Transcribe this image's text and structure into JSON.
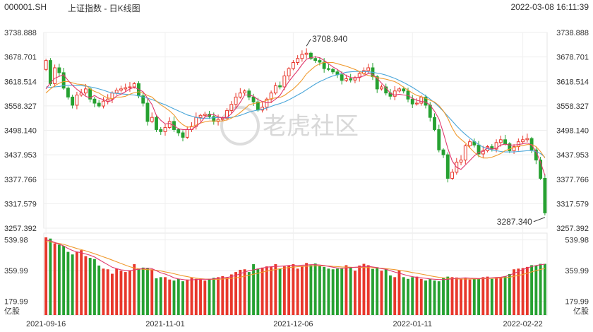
{
  "header": {
    "symbol": "000001.SH",
    "name": "上证指数 - 日K线图",
    "datetime": "2022-03-08 16:11:39"
  },
  "watermark": "老虎社区",
  "colors": {
    "up": "#e8372b",
    "down": "#26a131",
    "ma5": "#e0396e",
    "ma10": "#f09a2e",
    "ma20": "#4aa6d9"
  },
  "chart_data": [
    {
      "type": "candlestick",
      "title": "",
      "ylim": [
        3257.392,
        3738.888
      ],
      "y_ticks": [
        "3738.888",
        "3678.701",
        "3618.514",
        "3558.327",
        "3498.140",
        "3437.953",
        "3377.766",
        "3317.579",
        "3257.392"
      ],
      "x_ticks": [
        "2021-09-16",
        "2021-11-01",
        "2021-12-06",
        "2022-01-11",
        "2022-02-22"
      ],
      "annotations": {
        "high": "3708.940",
        "low": "3287.340"
      },
      "close": [
        3670,
        3613,
        3652,
        3640,
        3602,
        3580,
        3560,
        3585,
        3590,
        3600,
        3575,
        3565,
        3558,
        3570,
        3575,
        3590,
        3597,
        3600,
        3603,
        3605,
        3613,
        3583,
        3565,
        3520,
        3530,
        3500,
        3495,
        3505,
        3520,
        3500,
        3492,
        3481,
        3500,
        3508,
        3530,
        3535,
        3538,
        3532,
        3520,
        3525,
        3528,
        3547,
        3562,
        3580,
        3590,
        3595,
        3580,
        3568,
        3548,
        3555,
        3575,
        3590,
        3608,
        3605,
        3632,
        3650,
        3665,
        3675,
        3685,
        3688,
        3675,
        3670,
        3666,
        3650,
        3648,
        3642,
        3635,
        3621,
        3625,
        3622,
        3628,
        3638,
        3645,
        3652,
        3630,
        3600,
        3605,
        3590,
        3582,
        3595,
        3600,
        3595,
        3575,
        3563,
        3565,
        3580,
        3560,
        3530,
        3500,
        3450,
        3438,
        3380,
        3395,
        3420,
        3425,
        3460,
        3470,
        3462,
        3440,
        3448,
        3458,
        3452,
        3468,
        3475,
        3465,
        3448,
        3458,
        3470,
        3475,
        3478,
        3450,
        3425,
        3380,
        3295
      ],
      "ma5": [
        3600,
        3615,
        3626,
        3631,
        3635,
        3621,
        3609,
        3599,
        3591,
        3582,
        3578,
        3584,
        3577,
        3574,
        3568,
        3572,
        3583,
        3587,
        3593,
        3600,
        3604,
        3599,
        3593,
        3577,
        3562,
        3535,
        3523,
        3514,
        3515,
        3510,
        3502,
        3500,
        3500,
        3500,
        3508,
        3517,
        3531,
        3536,
        3537,
        3531,
        3529,
        3530,
        3539,
        3552,
        3567,
        3585,
        3585,
        3582,
        3574,
        3569,
        3566,
        3567,
        3575,
        3584,
        3602,
        3618,
        3632,
        3645,
        3660,
        3673,
        3677,
        3679,
        3677,
        3670,
        3662,
        3654,
        3648,
        3640,
        3633,
        3628,
        3627,
        3629,
        3632,
        3638,
        3636,
        3626,
        3614,
        3603,
        3589,
        3585,
        3587,
        3585,
        3584,
        3577,
        3572,
        3569,
        3568,
        3560,
        3545,
        3526,
        3492,
        3454,
        3423,
        3407,
        3402,
        3413,
        3424,
        3435,
        3444,
        3446,
        3456,
        3452,
        3454,
        3462,
        3464,
        3462,
        3462,
        3463,
        3465,
        3467,
        3462,
        3446,
        3420,
        3387
      ],
      "ma10": [
        3590,
        3600,
        3608,
        3614,
        3618,
        3618,
        3615,
        3612,
        3611,
        3609,
        3600,
        3594,
        3590,
        3583,
        3578,
        3576,
        3580,
        3580,
        3582,
        3587,
        3591,
        3593,
        3590,
        3584,
        3580,
        3570,
        3561,
        3554,
        3546,
        3536,
        3521,
        3512,
        3506,
        3507,
        3511,
        3516,
        3519,
        3521,
        3521,
        3521,
        3521,
        3524,
        3528,
        3534,
        3542,
        3551,
        3561,
        3564,
        3566,
        3568,
        3572,
        3576,
        3578,
        3579,
        3584,
        3592,
        3600,
        3610,
        3622,
        3637,
        3647,
        3656,
        3662,
        3665,
        3665,
        3665,
        3662,
        3659,
        3656,
        3652,
        3648,
        3643,
        3637,
        3633,
        3631,
        3628,
        3626,
        3624,
        3621,
        3618,
        3612,
        3604,
        3597,
        3590,
        3584,
        3581,
        3577,
        3572,
        3568,
        3559,
        3546,
        3528,
        3504,
        3486,
        3476,
        3467,
        3455,
        3444,
        3435,
        3430,
        3430,
        3432,
        3436,
        3441,
        3448,
        3452,
        3456,
        3459,
        3461,
        3463,
        3463,
        3458,
        3446,
        3430
      ],
      "ma20": [
        3605,
        3604,
        3605,
        3606,
        3608,
        3609,
        3609,
        3608,
        3608,
        3607,
        3605,
        3603,
        3600,
        3597,
        3593,
        3590,
        3589,
        3588,
        3587,
        3586,
        3585,
        3583,
        3580,
        3577,
        3574,
        3570,
        3565,
        3561,
        3556,
        3551,
        3546,
        3541,
        3536,
        3533,
        3530,
        3528,
        3528,
        3528,
        3529,
        3530,
        3529,
        3529,
        3530,
        3532,
        3535,
        3539,
        3543,
        3546,
        3548,
        3550,
        3553,
        3557,
        3561,
        3564,
        3568,
        3573,
        3579,
        3585,
        3591,
        3598,
        3605,
        3612,
        3618,
        3623,
        3628,
        3632,
        3635,
        3638,
        3641,
        3642,
        3643,
        3643,
        3643,
        3642,
        3641,
        3639,
        3637,
        3634,
        3630,
        3626,
        3621,
        3616,
        3610,
        3604,
        3597,
        3590,
        3583,
        3575,
        3566,
        3556,
        3545,
        3533,
        3521,
        3509,
        3498,
        3488,
        3479,
        3471,
        3463,
        3457,
        3453,
        3450,
        3448,
        3446,
        3445,
        3445,
        3445,
        3446,
        3447,
        3448,
        3448,
        3446,
        3441,
        3432
      ]
    },
    {
      "type": "bar",
      "title": "",
      "ylabel": "亿股",
      "ylim": [
        100,
        580
      ],
      "y_ticks": [
        "539.98",
        "359.99",
        "179.99"
      ],
      "volume": [
        555,
        548,
        520,
        512,
        505,
        470,
        455,
        470,
        480,
        445,
        435,
        428,
        390,
        372,
        368,
        342,
        372,
        360,
        352,
        362,
        398,
        372,
        378,
        375,
        368,
        315,
        322,
        322,
        308,
        302,
        312,
        298,
        308,
        318,
        312,
        308,
        302,
        312,
        318,
        322,
        328,
        322,
        338,
        352,
        365,
        368,
        352,
        398,
        372,
        378,
        385,
        382,
        398,
        372,
        385,
        392,
        398,
        372,
        385,
        405,
        392,
        402,
        388,
        382,
        372,
        368,
        372,
        372,
        392,
        380,
        360,
        390,
        400,
        392,
        370,
        380,
        360,
        372,
        332,
        322,
        362,
        322,
        312,
        322,
        325,
        312,
        302,
        312,
        302,
        298,
        316,
        325,
        322,
        320,
        312,
        318,
        308,
        312,
        315,
        322,
        325,
        312,
        322,
        322,
        328,
        340,
        368,
        372,
        375,
        382,
        392,
        390,
        400,
        400
      ],
      "vol_ma5": [
        540,
        535,
        525,
        515,
        505,
        490,
        478,
        470,
        465,
        458,
        450,
        440,
        425,
        410,
        395,
        380,
        372,
        365,
        362,
        360,
        365,
        368,
        372,
        375,
        372,
        360,
        348,
        340,
        330,
        318,
        312,
        308,
        305,
        306,
        308,
        310,
        310,
        310,
        312,
        315,
        318,
        320,
        325,
        332,
        342,
        352,
        360,
        365,
        370,
        375,
        380,
        383,
        385,
        386,
        388,
        390,
        392,
        390,
        392,
        393,
        395,
        395,
        393,
        390,
        385,
        380,
        376,
        374,
        376,
        378,
        380,
        382,
        384,
        385,
        382,
        378,
        372,
        368,
        360,
        352,
        345,
        338,
        330,
        325,
        320,
        318,
        315,
        312,
        310,
        308,
        308,
        310,
        312,
        315,
        316,
        318,
        316,
        315,
        314,
        315,
        316,
        318,
        320,
        322,
        326,
        334,
        344,
        355,
        366,
        376,
        384,
        390,
        395,
        398
      ],
      "vol_ma10": [
        530,
        528,
        524,
        519,
        514,
        506,
        498,
        490,
        483,
        476,
        468,
        459,
        450,
        441,
        432,
        422,
        412,
        402,
        392,
        383,
        376,
        371,
        368,
        366,
        365,
        362,
        358,
        353,
        348,
        342,
        336,
        330,
        325,
        320,
        316,
        313,
        311,
        310,
        309,
        310,
        311,
        313,
        315,
        318,
        322,
        327,
        333,
        339,
        345,
        351,
        357,
        362,
        367,
        371,
        375,
        378,
        381,
        383,
        385,
        386,
        387,
        388,
        388,
        388,
        387,
        385,
        384,
        382,
        381,
        380,
        379,
        379,
        378,
        378,
        377,
        376,
        374,
        372,
        369,
        366,
        362,
        358,
        354,
        349,
        345,
        340,
        335,
        330,
        325,
        321,
        318,
        315,
        313,
        312,
        311,
        311,
        311,
        312,
        312,
        313,
        314,
        315,
        316,
        317,
        319,
        322,
        327,
        332,
        338,
        345,
        353,
        360,
        367,
        373
      ]
    }
  ]
}
